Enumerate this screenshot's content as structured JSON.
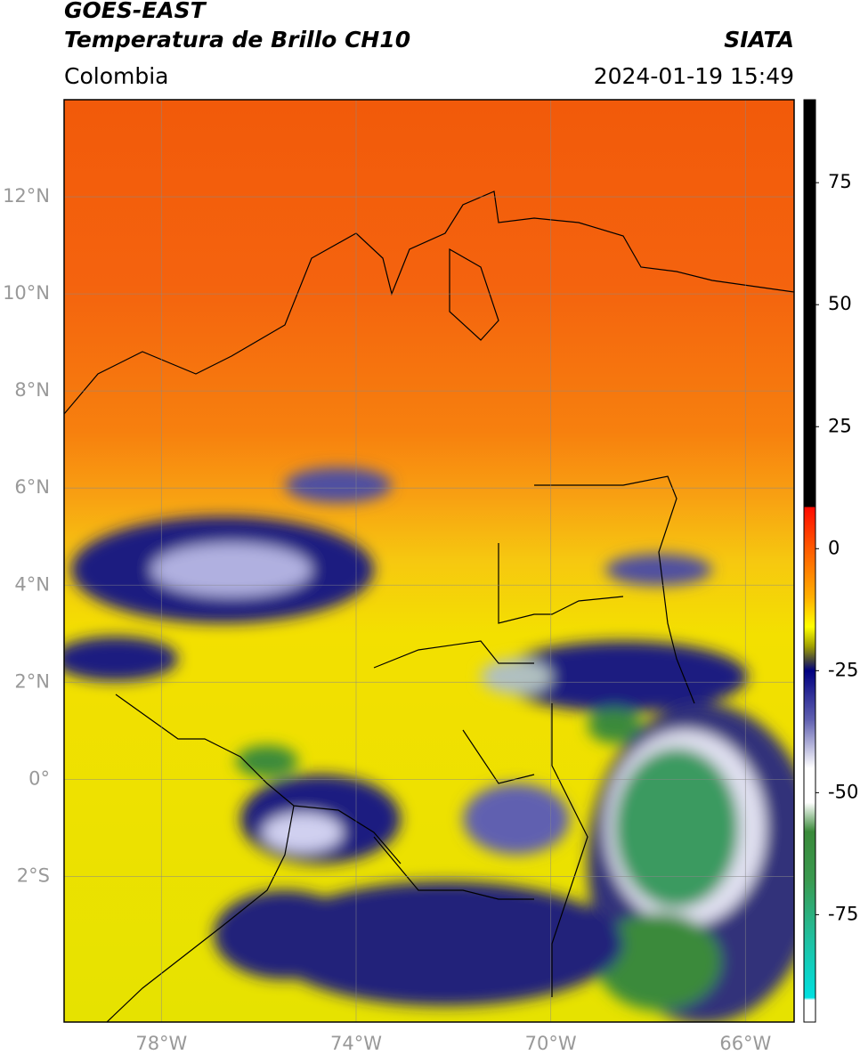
{
  "header": {
    "title": "GOES-EAST",
    "subtitle": "Temperatura de Brillo CH10",
    "brand": "SIATA",
    "region": "Colombia",
    "timestamp": "2024-01-19 15:49"
  },
  "map": {
    "xlim": [
      -80,
      -65
    ],
    "ylim": [
      -5,
      14
    ],
    "grid": true,
    "xticks": [
      {
        "value": -78,
        "label": "78°W"
      },
      {
        "value": -74,
        "label": "74°W"
      },
      {
        "value": -70,
        "label": "70°W"
      },
      {
        "value": -66,
        "label": "66°W"
      }
    ],
    "yticks": [
      {
        "value": 12,
        "label": "12°N"
      },
      {
        "value": 10,
        "label": "10°N"
      },
      {
        "value": 8,
        "label": "8°N"
      },
      {
        "value": 6,
        "label": "6°N"
      },
      {
        "value": 4,
        "label": "4°N"
      },
      {
        "value": 2,
        "label": "2°N"
      },
      {
        "value": 0,
        "label": "0°"
      },
      {
        "value": -2,
        "label": "2°S"
      }
    ]
  },
  "colorbar": {
    "lim": [
      -97,
      92
    ],
    "ticks": [
      75,
      50,
      25,
      0,
      -25,
      -50,
      -75
    ],
    "stops": [
      [
        92,
        "#000000"
      ],
      [
        8.5,
        "#000000"
      ],
      [
        8.5,
        "#ff0a00"
      ],
      [
        0,
        "#ff5a00"
      ],
      [
        -10,
        "#ffb000"
      ],
      [
        -16,
        "#ffff00"
      ],
      [
        -20,
        "#a0a000"
      ],
      [
        -23,
        "#404040"
      ],
      [
        -25,
        "#000080"
      ],
      [
        -35,
        "#6060b0"
      ],
      [
        -45,
        "#ffffff"
      ],
      [
        -52,
        "#ffffff"
      ],
      [
        -58,
        "#3a8a3a"
      ],
      [
        -68,
        "#3a9a50"
      ],
      [
        -80,
        "#20c0a0"
      ],
      [
        -92,
        "#00e0e0"
      ],
      [
        -92.5,
        "#ffffff"
      ],
      [
        -97,
        "#ffffff"
      ]
    ]
  }
}
